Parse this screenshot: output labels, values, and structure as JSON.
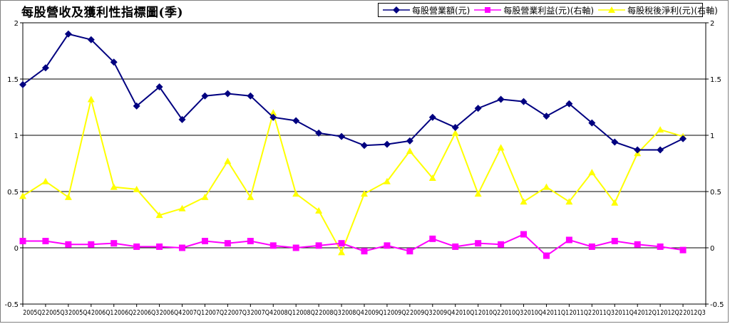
{
  "title": "每股營收及獲利性指標圖(季)",
  "chart_data": {
    "type": "line",
    "title": "每股營收及獲利性指標圖(季)",
    "categories": [
      "2005Q2",
      "2005Q3",
      "2005Q4",
      "2006Q1",
      "2006Q2",
      "2006Q3",
      "2006Q4",
      "2007Q1",
      "2007Q2",
      "2007Q3",
      "2007Q4",
      "2008Q1",
      "2008Q2",
      "2008Q3",
      "2008Q4",
      "2009Q1",
      "2009Q2",
      "2009Q3",
      "2009Q4",
      "2010Q1",
      "2010Q2",
      "2010Q3",
      "2010Q4",
      "2011Q1",
      "2011Q2",
      "2011Q3",
      "2011Q4",
      "2012Q1",
      "2012Q2",
      "2012Q3"
    ],
    "ylim": [
      -0.5,
      2
    ],
    "y2lim": [
      -0.5,
      2
    ],
    "yticks": [
      "2",
      "1.5",
      "1",
      "0.5",
      "0",
      "-0.5"
    ],
    "grid": "horizontal",
    "legend_position": "top-right",
    "series": [
      {
        "name": "每股營業額(元)",
        "color": "#000080",
        "marker": "diamond",
        "axis": "left",
        "values": [
          1.45,
          1.6,
          1.9,
          1.85,
          1.65,
          1.26,
          1.43,
          1.14,
          1.35,
          1.37,
          1.35,
          1.16,
          1.13,
          1.02,
          0.99,
          0.91,
          0.92,
          0.95,
          1.16,
          1.07,
          1.24,
          1.32,
          1.3,
          1.17,
          1.28,
          1.11,
          0.94,
          0.87,
          0.87,
          0.97
        ]
      },
      {
        "name": "每股營業利益(元)(右軸)",
        "color": "#ff00ff",
        "marker": "square",
        "axis": "right",
        "values": [
          0.06,
          0.06,
          0.03,
          0.03,
          0.04,
          0.01,
          0.01,
          0.0,
          0.06,
          0.04,
          0.06,
          0.02,
          0.0,
          0.02,
          0.04,
          -0.03,
          0.02,
          -0.03,
          0.08,
          0.01,
          0.04,
          0.03,
          0.12,
          -0.07,
          0.07,
          0.01,
          0.06,
          0.03,
          0.01,
          -0.02
        ]
      },
      {
        "name": "每股稅後淨利(元)(右軸)",
        "color": "#ffff00",
        "marker": "triangle",
        "axis": "right",
        "values": [
          0.46,
          0.59,
          0.45,
          1.32,
          0.54,
          0.52,
          0.29,
          0.35,
          0.45,
          0.77,
          0.45,
          1.2,
          0.48,
          0.33,
          -0.04,
          0.48,
          0.59,
          0.86,
          0.62,
          1.02,
          0.48,
          0.89,
          0.41,
          0.54,
          0.41,
          0.67,
          0.4,
          0.84,
          1.05,
          0.99
        ]
      }
    ]
  }
}
